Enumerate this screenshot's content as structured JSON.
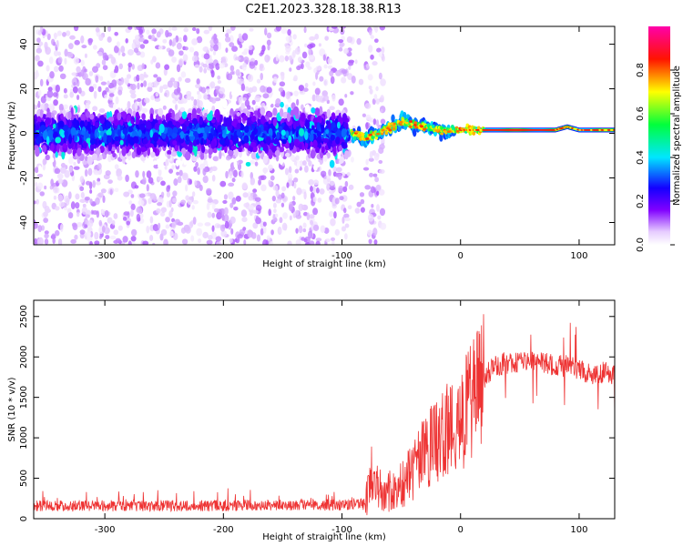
{
  "title": "C2E1.2023.328.18.38.R13",
  "chart_data": [
    {
      "type": "heatmap",
      "title": "",
      "xlabel": "Height of straight line (km)",
      "ylabel": "Frequency (Hz)",
      "xlim": [
        -360,
        130
      ],
      "ylim": [
        -50,
        48
      ],
      "xticks": [
        -300,
        -200,
        -100,
        0,
        100
      ],
      "yticks": [
        -40,
        -20,
        0,
        20,
        40
      ],
      "colorbar": {
        "label": "Normalized spectral amplitude",
        "range": [
          0,
          1
        ],
        "ticks": [
          0.0,
          0.2,
          0.4,
          0.6,
          0.8
        ],
        "colors": [
          "#ffffff",
          "#e6ccff",
          "#8000ff",
          "#0000ff",
          "#00ffff",
          "#00ff00",
          "#ffff00",
          "#ff0000",
          "#ff00aa"
        ]
      },
      "signal_band": {
        "noisy_region_x": [
          -360,
          -95
        ],
        "noisy_center_hz": 0,
        "noisy_halfwidth_hz": 9,
        "sparse_scatter_x": [
          -360,
          -65
        ],
        "sparse_scatter_hz": [
          -50,
          48
        ],
        "carrier_trace": [
          {
            "x": -92,
            "y": 0
          },
          {
            "x": -80,
            "y": -2
          },
          {
            "x": -65,
            "y": 1
          },
          {
            "x": -50,
            "y": 5
          },
          {
            "x": -40,
            "y": 4
          },
          {
            "x": -30,
            "y": 3
          },
          {
            "x": -15,
            "y": 1
          },
          {
            "x": 0,
            "y": 1.5
          },
          {
            "x": 30,
            "y": 1.5
          },
          {
            "x": 80,
            "y": 1.5
          },
          {
            "x": 90,
            "y": 3
          },
          {
            "x": 100,
            "y": 1.5
          },
          {
            "x": 130,
            "y": 1.5
          }
        ]
      }
    },
    {
      "type": "line",
      "title": "",
      "xlabel": "Height of straight line (km)",
      "ylabel": "SNR (10 * v/v)",
      "xlim": [
        -360,
        130
      ],
      "ylim": [
        0,
        2700
      ],
      "xticks": [
        -300,
        -200,
        -100,
        0,
        100
      ],
      "yticks": [
        0,
        500,
        1000,
        1500,
        2000,
        2500
      ],
      "series": [
        {
          "color": "#ee3333",
          "x": [
            -360,
            -300,
            -200,
            -150,
            -100,
            -80,
            -75,
            -65,
            -50,
            -40,
            -30,
            -20,
            -10,
            0,
            10,
            20,
            30,
            50,
            70,
            90,
            100,
            110,
            130
          ],
          "values": [
            160,
            160,
            160,
            170,
            170,
            180,
            600,
            300,
            400,
            600,
            800,
            950,
            1100,
            1200,
            1450,
            1750,
            1900,
            1950,
            1920,
            1880,
            1850,
            1800,
            1800
          ]
        }
      ]
    }
  ]
}
